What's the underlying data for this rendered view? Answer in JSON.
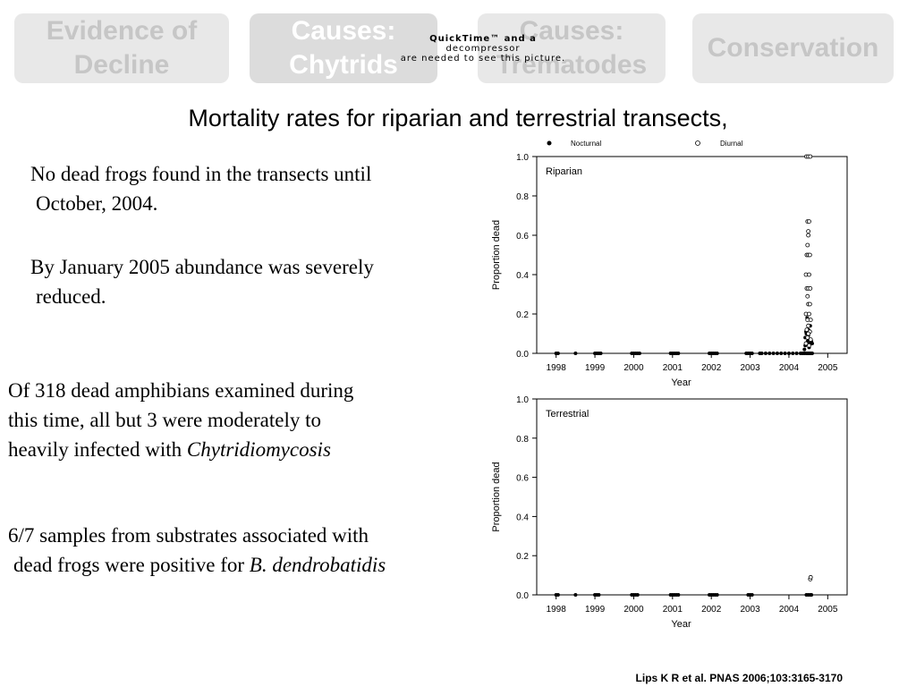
{
  "nav": {
    "tabs": [
      {
        "line1": "Evidence of",
        "line2": "Decline"
      },
      {
        "line1": "Causes:",
        "line2": "Chytrids"
      },
      {
        "line1": "Causes:",
        "line2": "Trematodes"
      },
      {
        "line1": "Conservation",
        "line2": ""
      }
    ]
  },
  "overlay": {
    "line1": "QuickTime™ and a",
    "line2": "decompressor",
    "line3": "are needed to see this picture."
  },
  "title": "Mortality rates for riparian and terrestrial transects,",
  "paragraphs": {
    "p1": {
      "line1": "No dead frogs found in the transects until",
      "line2": "October, 2004."
    },
    "p2": {
      "line1": "By January 2005 abundance was severely",
      "line2": "reduced."
    },
    "p3": {
      "line1": "Of 318 dead amphibians examined during",
      "line2": "this time, all but 3 were moderately to",
      "line3_prefix": "heavily infected with ",
      "line3_italic": "Chytridiomycosis"
    },
    "p4": {
      "line1": "6/7 samples from substrates associated with",
      "line2_prefix": "dead frogs were positive for ",
      "line2_italic": "B. dendrobatidis"
    }
  },
  "citation": "Lips K R et al. PNAS 2006;103:3165-3170",
  "chart_data": [
    {
      "type": "scatter",
      "title": "Riparian",
      "xlabel": "Year",
      "ylabel": "Proportion dead",
      "xlim": [
        1997.5,
        2005.5
      ],
      "ylim": [
        0,
        1
      ],
      "x_ticks": [
        1998,
        1999,
        2000,
        2001,
        2002,
        2003,
        2004,
        2005
      ],
      "y_ticks": [
        "0.0",
        "0.2",
        "0.4",
        "0.6",
        "0.8",
        "1.0"
      ],
      "legend": {
        "position": "top",
        "entries": [
          {
            "name": "Nocturnal",
            "marker": "filled"
          },
          {
            "name": "Diurnal",
            "marker": "open"
          }
        ]
      },
      "series": [
        {
          "name": "Nocturnal",
          "marker": "filled",
          "points": [
            [
              1998.0,
              0
            ],
            [
              1998.05,
              0
            ],
            [
              1998.5,
              0
            ],
            [
              1999.0,
              0
            ],
            [
              1999.05,
              0
            ],
            [
              1999.1,
              0
            ],
            [
              1999.15,
              0
            ],
            [
              1999.95,
              0
            ],
            [
              2000.0,
              0
            ],
            [
              2000.05,
              0
            ],
            [
              2000.1,
              0
            ],
            [
              2000.15,
              0
            ],
            [
              2000.95,
              0
            ],
            [
              2001.0,
              0
            ],
            [
              2001.05,
              0
            ],
            [
              2001.1,
              0
            ],
            [
              2001.15,
              0
            ],
            [
              2001.95,
              0
            ],
            [
              2002.0,
              0
            ],
            [
              2002.05,
              0
            ],
            [
              2002.1,
              0
            ],
            [
              2002.15,
              0
            ],
            [
              2002.9,
              0
            ],
            [
              2002.95,
              0
            ],
            [
              2003.0,
              0
            ],
            [
              2003.05,
              0
            ],
            [
              2003.25,
              0
            ],
            [
              2003.3,
              0
            ],
            [
              2003.4,
              0
            ],
            [
              2003.5,
              0
            ],
            [
              2003.6,
              0
            ],
            [
              2003.7,
              0
            ],
            [
              2003.8,
              0
            ],
            [
              2003.9,
              0
            ],
            [
              2004.0,
              0
            ],
            [
              2004.1,
              0
            ],
            [
              2004.2,
              0
            ],
            [
              2004.3,
              0
            ],
            [
              2004.35,
              0
            ],
            [
              2004.4,
              0
            ],
            [
              2004.45,
              0
            ],
            [
              2004.48,
              0
            ],
            [
              2004.5,
              0
            ],
            [
              2004.52,
              0
            ],
            [
              2004.55,
              0
            ],
            [
              2004.58,
              0
            ],
            [
              2004.6,
              0
            ],
            [
              2004.4,
              0.02
            ],
            [
              2004.42,
              0.04
            ],
            [
              2004.45,
              0.05
            ],
            [
              2004.48,
              0.06
            ],
            [
              2004.5,
              0.07
            ],
            [
              2004.52,
              0.03
            ],
            [
              2004.55,
              0.05
            ],
            [
              2004.58,
              0.06
            ],
            [
              2004.6,
              0.05
            ],
            [
              2004.42,
              0.08
            ],
            [
              2004.45,
              0.1
            ],
            [
              2004.5,
              0.12
            ],
            [
              2004.55,
              0.14
            ],
            [
              2004.47,
              0.18
            ],
            [
              2004.5,
              0.09
            ],
            [
              2004.44,
              0.11
            ]
          ]
        },
        {
          "name": "Diurnal",
          "marker": "open",
          "points": [
            [
              2004.45,
              1
            ],
            [
              2004.5,
              1
            ],
            [
              2004.55,
              1
            ],
            [
              2004.48,
              0.67
            ],
            [
              2004.52,
              0.67
            ],
            [
              2004.5,
              0.62
            ],
            [
              2004.5,
              0.6
            ],
            [
              2004.48,
              0.55
            ],
            [
              2004.46,
              0.5
            ],
            [
              2004.5,
              0.5
            ],
            [
              2004.54,
              0.5
            ],
            [
              2004.44,
              0.4
            ],
            [
              2004.52,
              0.4
            ],
            [
              2004.46,
              0.33
            ],
            [
              2004.5,
              0.33
            ],
            [
              2004.55,
              0.33
            ],
            [
              2004.48,
              0.29
            ],
            [
              2004.5,
              0.25
            ],
            [
              2004.54,
              0.25
            ],
            [
              2004.44,
              0.2
            ],
            [
              2004.52,
              0.2
            ],
            [
              2004.48,
              0.17
            ],
            [
              2004.56,
              0.17
            ],
            [
              2004.5,
              0.14
            ],
            [
              2004.46,
              0.12
            ],
            [
              2004.54,
              0.11
            ],
            [
              2004.5,
              0.1
            ],
            [
              2004.48,
              0.08
            ],
            [
              2004.56,
              0.07
            ],
            [
              2004.44,
              0.05
            ],
            [
              2004.52,
              0.04
            ]
          ]
        }
      ]
    },
    {
      "type": "scatter",
      "title": "Terrestrial",
      "xlabel": "Year",
      "ylabel": "Proportion dead",
      "xlim": [
        1997.5,
        2005.5
      ],
      "ylim": [
        0,
        1
      ],
      "x_ticks": [
        1998,
        1999,
        2000,
        2001,
        2002,
        2003,
        2004,
        2005
      ],
      "y_ticks": [
        "0.0",
        "0.2",
        "0.4",
        "0.6",
        "0.8",
        "1.0"
      ],
      "series": [
        {
          "name": "Nocturnal",
          "marker": "filled",
          "points": [
            [
              1998.0,
              0
            ],
            [
              1998.05,
              0
            ],
            [
              1998.5,
              0
            ],
            [
              1999.0,
              0
            ],
            [
              1999.05,
              0
            ],
            [
              1999.1,
              0
            ],
            [
              1999.95,
              0
            ],
            [
              2000.0,
              0
            ],
            [
              2000.05,
              0
            ],
            [
              2000.1,
              0
            ],
            [
              2000.95,
              0
            ],
            [
              2001.0,
              0
            ],
            [
              2001.05,
              0
            ],
            [
              2001.1,
              0
            ],
            [
              2001.15,
              0
            ],
            [
              2001.95,
              0
            ],
            [
              2002.0,
              0
            ],
            [
              2002.05,
              0
            ],
            [
              2002.1,
              0
            ],
            [
              2002.15,
              0
            ],
            [
              2002.95,
              0
            ],
            [
              2003.0,
              0
            ],
            [
              2003.05,
              0
            ],
            [
              2004.45,
              0
            ],
            [
              2004.5,
              0
            ],
            [
              2004.55,
              0
            ],
            [
              2004.58,
              0
            ]
          ]
        },
        {
          "name": "Diurnal",
          "marker": "open",
          "points": [
            [
              2004.55,
              0.08
            ],
            [
              2004.56,
              0.09
            ]
          ]
        }
      ]
    }
  ]
}
